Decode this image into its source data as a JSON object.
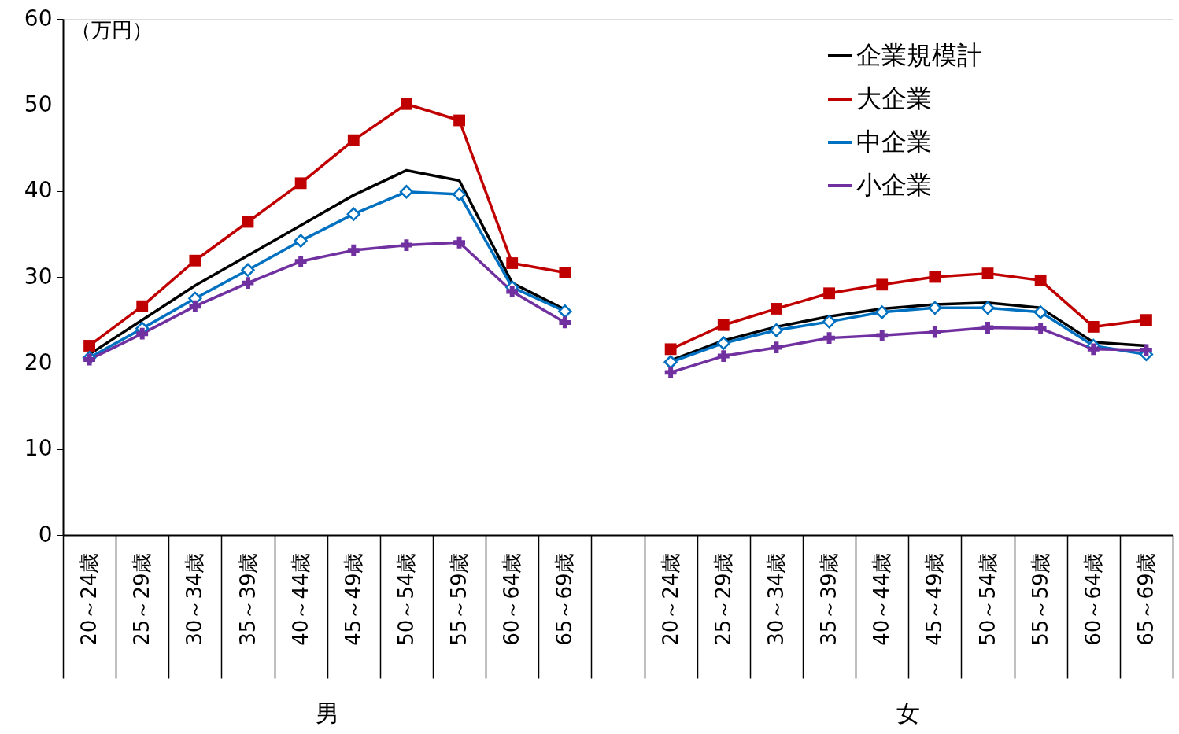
{
  "chart_data": {
    "type": "line",
    "categories": [
      "20～24歳",
      "25～29歳",
      "30～34歳",
      "35～39歳",
      "40～44歳",
      "45～49歳",
      "50～54歳",
      "55～59歳",
      "60～64歳",
      "65～69歳",
      null,
      "20～24歳",
      "25～29歳",
      "30～34歳",
      "35～39歳",
      "40～44歳",
      "45～49歳",
      "50～54歳",
      "55～59歳",
      "60～64歳",
      "65～69歳"
    ],
    "series": [
      {
        "name": "企業規模計",
        "color": "#000000",
        "marker": "none",
        "values": [
          21.0,
          25.0,
          29.0,
          32.5,
          36.0,
          39.5,
          42.4,
          41.2,
          29.3,
          26.2,
          null,
          20.3,
          22.6,
          24.2,
          25.4,
          26.3,
          26.8,
          27.0,
          26.4,
          22.4,
          22.0
        ]
      },
      {
        "name": "大企業",
        "color": "#c00000",
        "marker": "square",
        "values": [
          22.0,
          26.6,
          31.9,
          36.4,
          40.9,
          45.9,
          50.1,
          48.2,
          31.6,
          30.5,
          null,
          21.6,
          24.4,
          26.3,
          28.1,
          29.1,
          30.0,
          30.4,
          29.6,
          24.2,
          25.0
        ]
      },
      {
        "name": "中企業",
        "color": "#0070c0",
        "marker": "diamond",
        "values": [
          20.6,
          24.0,
          27.5,
          30.8,
          34.2,
          37.3,
          39.9,
          39.6,
          28.8,
          26.0,
          null,
          20.1,
          22.3,
          23.8,
          24.8,
          25.9,
          26.4,
          26.4,
          25.9,
          22.0,
          21.0
        ]
      },
      {
        "name": "小企業",
        "color": "#7030a0",
        "marker": "cross",
        "values": [
          20.4,
          23.4,
          26.6,
          29.3,
          31.8,
          33.1,
          33.7,
          34.0,
          28.3,
          24.7,
          null,
          18.9,
          20.8,
          21.8,
          22.9,
          23.2,
          23.6,
          24.1,
          24.0,
          21.6,
          21.5
        ]
      }
    ],
    "ylabel": "（万円）",
    "annotations": [
      "男",
      "女"
    ],
    "ylim": [
      0,
      60
    ],
    "yticks": [
      0,
      10,
      20,
      30,
      40,
      50,
      60
    ],
    "grid": false,
    "legend": "top right"
  }
}
